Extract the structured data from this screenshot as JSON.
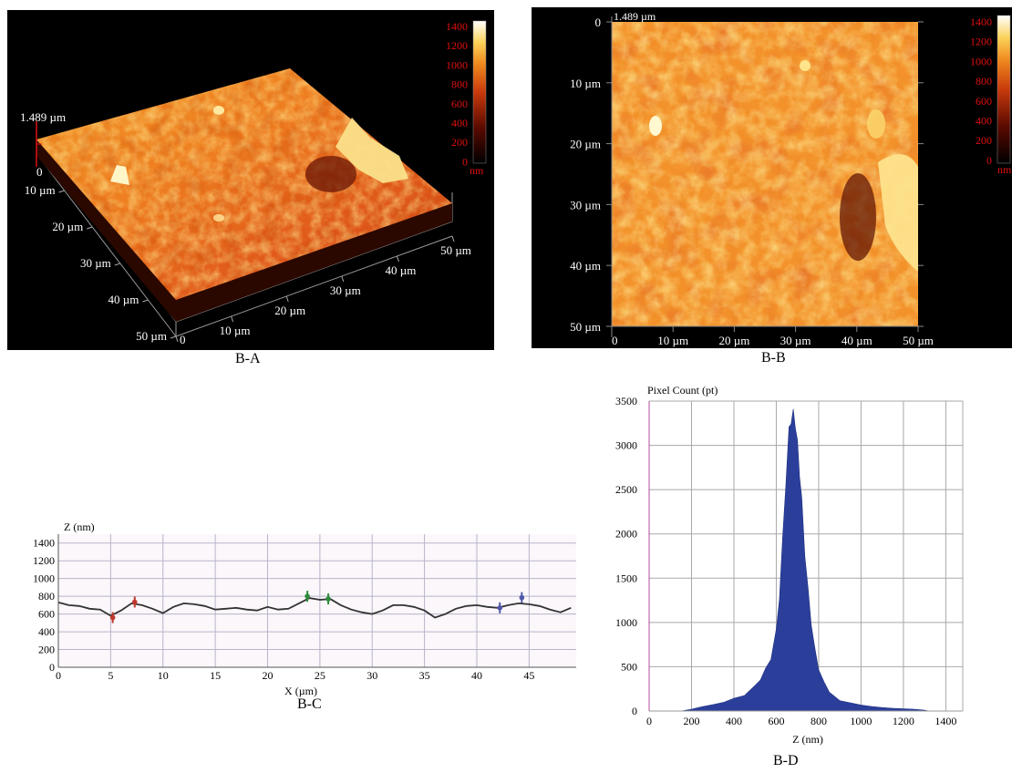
{
  "colors": {
    "afm_low": "#1a0000",
    "afm_mid": "#d84a10",
    "afm_high": "#ffffcc",
    "hist_fill": "#2b3f9a",
    "profile_line": "#333333",
    "grid": "#b4b4c8"
  },
  "chart_data": [
    {
      "id": "B-A",
      "type": "heatmap",
      "view": "3d-surface",
      "caption": "B-A",
      "height_label": "1.489 µm",
      "z_origin_label": "0",
      "y_ticks": [
        "10 µm",
        "20 µm",
        "30 µm",
        "40 µm",
        "50 µm"
      ],
      "x_ticks": [
        "0",
        "10 µm",
        "20 µm",
        "30 µm",
        "40 µm",
        "50 µm"
      ],
      "colorbar": {
        "unit": "nm",
        "ticks": [
          "1400",
          "1200",
          "1000",
          "800",
          "600",
          "400",
          "200",
          "0"
        ],
        "range": [
          0,
          1489
        ]
      }
    },
    {
      "id": "B-B",
      "type": "heatmap",
      "view": "top-down",
      "caption": "B-B",
      "height_label": "1.489 µm",
      "y_ticks": [
        "0",
        "10 µm",
        "20 µm",
        "30 µm",
        "40 µm",
        "50 µm"
      ],
      "x_ticks": [
        "0",
        "10 µm",
        "20 µm",
        "30 µm",
        "40 µm",
        "50 µm"
      ],
      "colorbar": {
        "unit": "nm",
        "ticks": [
          "1400",
          "1200",
          "1000",
          "800",
          "600",
          "400",
          "200",
          "0"
        ],
        "range": [
          0,
          1489
        ]
      }
    },
    {
      "id": "B-C",
      "type": "line",
      "caption": "B-C",
      "ylabel": "Z (nm)",
      "xlabel": "X (µm)",
      "xlim": [
        0,
        49.5
      ],
      "ylim": [
        0,
        1500
      ],
      "x_ticks": [
        "0",
        "5",
        "10",
        "15",
        "20",
        "25",
        "30",
        "35",
        "40",
        "45"
      ],
      "y_ticks": [
        "0",
        "200",
        "400",
        "600",
        "800",
        "1000",
        "1200",
        "1400"
      ],
      "grid": true,
      "series": [
        {
          "x": [
            0,
            1,
            2,
            3,
            4,
            5,
            6,
            7,
            8,
            9,
            10,
            11,
            12,
            13,
            14,
            15,
            16,
            17,
            18,
            19,
            20,
            21,
            22,
            23,
            24,
            25,
            26,
            27,
            28,
            29,
            30,
            31,
            32,
            33,
            34,
            35,
            36,
            37,
            38,
            39,
            40,
            41,
            42,
            43,
            44,
            45,
            46,
            47,
            48,
            49
          ],
          "values": [
            730,
            700,
            690,
            660,
            650,
            580,
            640,
            720,
            700,
            660,
            610,
            680,
            720,
            710,
            690,
            650,
            660,
            670,
            650,
            640,
            680,
            650,
            660,
            720,
            780,
            760,
            770,
            700,
            650,
            620,
            600,
            640,
            700,
            700,
            680,
            640,
            560,
            600,
            660,
            690,
            700,
            680,
            670,
            700,
            720,
            710,
            690,
            650,
            620,
            670
          ]
        }
      ],
      "markers": [
        {
          "x": 5.2,
          "y": 560,
          "color": "#c0392b"
        },
        {
          "x": 7.3,
          "y": 735,
          "color": "#c0392b"
        },
        {
          "x": 23.8,
          "y": 800,
          "color": "#2e8b3a"
        },
        {
          "x": 25.8,
          "y": 770,
          "color": "#2e8b3a"
        },
        {
          "x": 42.2,
          "y": 670,
          "color": "#5058a8"
        },
        {
          "x": 44.3,
          "y": 785,
          "color": "#5058a8"
        }
      ]
    },
    {
      "id": "B-D",
      "type": "area",
      "caption": "B-D",
      "ylabel": "Pixel Count (pt)",
      "xlabel": "Z (nm)",
      "xlim": [
        0,
        1480
      ],
      "ylim": [
        0,
        3500
      ],
      "x_ticks": [
        "0",
        "200",
        "400",
        "600",
        "800",
        "1000",
        "1200",
        "1400"
      ],
      "y_ticks": [
        "0",
        "500",
        "1000",
        "1500",
        "2000",
        "2500",
        "3000",
        "3500"
      ],
      "grid": true,
      "series": [
        {
          "x": [
            80,
            150,
            200,
            250,
            300,
            350,
            400,
            450,
            500,
            525,
            550,
            575,
            600,
            615,
            630,
            645,
            660,
            670,
            680,
            690,
            700,
            710,
            720,
            735,
            750,
            765,
            780,
            800,
            825,
            850,
            875,
            900,
            950,
            1000,
            1050,
            1100,
            1150,
            1200,
            1250,
            1300,
            1320
          ],
          "values": [
            0,
            0,
            20,
            50,
            70,
            100,
            140,
            180,
            280,
            360,
            470,
            600,
            900,
            1300,
            1900,
            2600,
            3150,
            3300,
            3350,
            3250,
            3000,
            2700,
            2350,
            1800,
            1350,
            1000,
            720,
            480,
            320,
            220,
            160,
            120,
            90,
            70,
            50,
            40,
            30,
            25,
            20,
            10,
            0
          ]
        }
      ]
    }
  ]
}
